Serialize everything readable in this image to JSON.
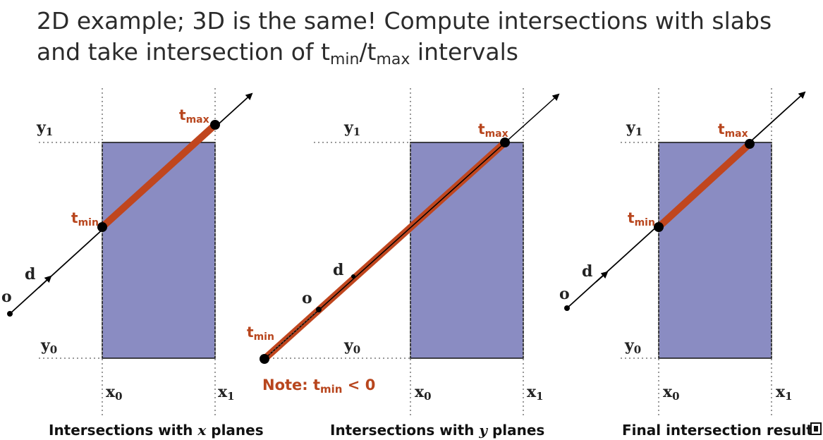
{
  "title": {
    "line1": "2D example; 3D is the same!  Compute intersections with slabs",
    "line2_prefix": "and take intersection of t",
    "sub_min": "min",
    "slash_t": "/t",
    "sub_max": "max",
    "line2_suffix": " intervals"
  },
  "labels": {
    "y1": "y",
    "y0": "y",
    "x0": "x",
    "x1": "x",
    "sub1": "1",
    "sub0": "0",
    "d": "d",
    "o": "o",
    "t": "t",
    "min": "min",
    "max": "max"
  },
  "note": {
    "prefix": "Note:  t",
    "sub": "min",
    "suffix": " < 0"
  },
  "captions": {
    "pane1_prefix": "Intersections with ",
    "pane1_var": "x",
    "pane1_suffix": " planes",
    "pane2_prefix": "Intersections with ",
    "pane2_var": "y",
    "pane2_suffix": " planes",
    "pane3": "Final intersection result"
  },
  "colors": {
    "box_fill": "#8a8cc2",
    "segment": "#c0461e",
    "text_accent": "#b8461e"
  }
}
